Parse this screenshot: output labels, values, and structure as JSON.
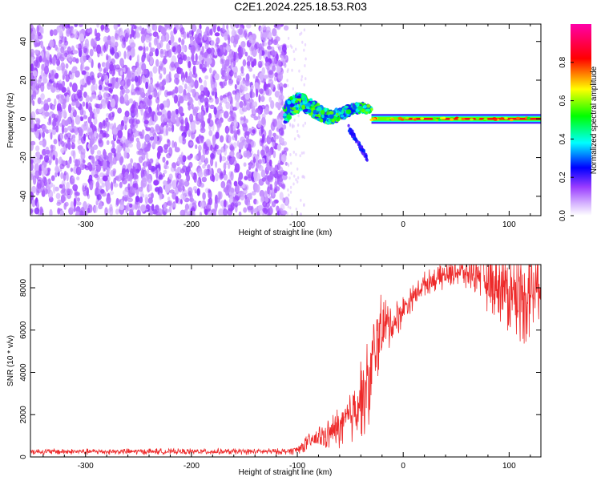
{
  "title": "C2E1.2024.225.18.53.R03",
  "chart_data": [
    {
      "type": "heatmap",
      "xlabel": "Height of straight line (km)",
      "ylabel": "Frequency (Hz)",
      "xlim": [
        -352,
        130
      ],
      "ylim": [
        -50,
        49
      ],
      "xticks": [
        "-300",
        "-200",
        "-100",
        "0",
        "100"
      ],
      "yticks": [
        "-40",
        "-20",
        "0",
        "20",
        "40"
      ],
      "colorbar": {
        "label": "Normalized spectral amplitude",
        "range": [
          0.0,
          1.0
        ],
        "ticks": [
          "0.0",
          "0.2",
          "0.4",
          "0.6",
          "0.8"
        ],
        "colors": [
          "#ffffff",
          "#9a3cff",
          "#0000ff",
          "#00ffff",
          "#00ff00",
          "#ffff00",
          "#ff0000",
          "#ff00a8"
        ]
      },
      "regions": [
        {
          "x": [
            -352,
            -110
          ],
          "y": [
            -50,
            49
          ],
          "amplitude": 0.12,
          "pattern": "noise"
        },
        {
          "x": [
            -112,
            -30
          ],
          "y": [
            -6,
            12
          ],
          "amplitude": 0.45,
          "pattern": "wandering-signal"
        },
        {
          "x": [
            -30,
            130
          ],
          "y": [
            -1,
            1
          ],
          "amplitude": 0.85,
          "pattern": "steady-line"
        }
      ]
    },
    {
      "type": "line",
      "xlabel": "Height of straight line (km)",
      "ylabel": "SNR (10 * v/v)",
      "xlim": [
        -352,
        130
      ],
      "ylim": [
        0,
        9100
      ],
      "xticks": [
        "-300",
        "-200",
        "-100",
        "0",
        "100"
      ],
      "yticks": [
        "0",
        "2000",
        "4000",
        "6000",
        "8000"
      ],
      "color": "#ee2a2a",
      "series": [
        {
          "x": [
            -352,
            -300,
            -250,
            -200,
            -150,
            -110,
            -100,
            -90,
            -80,
            -70,
            -60,
            -50,
            -45,
            -40,
            -35,
            -30,
            -25,
            -20,
            -15,
            -10,
            -5,
            0,
            10,
            20,
            30,
            40,
            50,
            60,
            70,
            80,
            90,
            100,
            110,
            120,
            130
          ],
          "values": [
            250,
            250,
            260,
            250,
            250,
            260,
            350,
            700,
            900,
            1100,
            1400,
            1900,
            2500,
            2900,
            3200,
            4000,
            5500,
            6000,
            6200,
            6300,
            6600,
            7000,
            7600,
            8200,
            8400,
            8600,
            8800,
            8700,
            8800,
            8300,
            8200,
            7800,
            7700,
            7800,
            8200
          ],
          "amplitude": [
            150,
            150,
            150,
            150,
            150,
            150,
            250,
            400,
            600,
            800,
            1100,
            1500,
            1800,
            2000,
            2300,
            2500,
            2200,
            1800,
            1400,
            1100,
            900,
            700,
            600,
            600,
            600,
            700,
            800,
            900,
            1100,
            1500,
            1800,
            2000,
            2400,
            2600,
            1500
          ]
        }
      ]
    }
  ]
}
